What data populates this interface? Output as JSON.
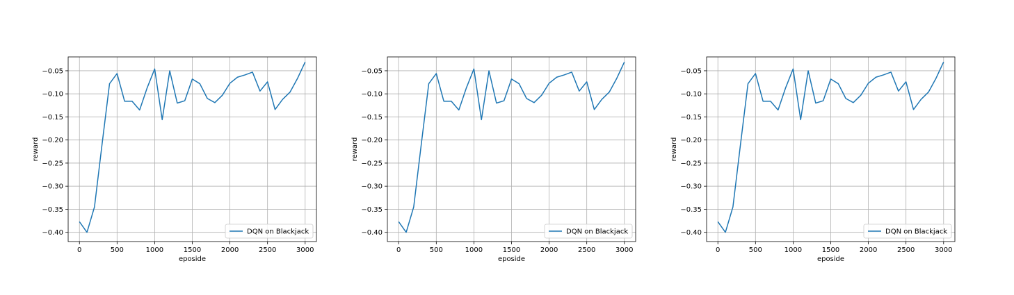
{
  "chart_data": [
    {
      "type": "line",
      "xlabel": "eposide",
      "ylabel": "reward",
      "xlim": [
        -150,
        3150
      ],
      "ylim": [
        -0.42,
        -0.02
      ],
      "xticks": [
        0,
        500,
        1000,
        1500,
        2000,
        2500,
        3000
      ],
      "yticks": [
        -0.4,
        -0.35,
        -0.3,
        -0.25,
        -0.2,
        -0.15,
        -0.1,
        -0.05
      ],
      "ytick_labels": [
        "−0.40",
        "−0.35",
        "−0.30",
        "−0.25",
        "−0.20",
        "−0.15",
        "−0.10",
        "−0.05"
      ],
      "grid": true,
      "legend_position": "lower-right",
      "series": [
        {
          "name": "DQN on Blackjack",
          "color": "#1f77b4",
          "x": [
            0,
            100,
            200,
            300,
            400,
            500,
            600,
            700,
            800,
            900,
            1000,
            1100,
            1200,
            1300,
            1400,
            1500,
            1600,
            1700,
            1800,
            1900,
            2000,
            2100,
            2200,
            2300,
            2400,
            2500,
            2600,
            2700,
            2800,
            2900,
            3000
          ],
          "y": [
            -0.377,
            -0.4,
            -0.345,
            -0.21,
            -0.078,
            -0.056,
            -0.116,
            -0.116,
            -0.135,
            -0.087,
            -0.046,
            -0.156,
            -0.05,
            -0.12,
            -0.115,
            -0.068,
            -0.078,
            -0.11,
            -0.119,
            -0.103,
            -0.077,
            -0.064,
            -0.059,
            -0.053,
            -0.094,
            -0.074,
            -0.134,
            -0.112,
            -0.096,
            -0.066,
            -0.031
          ]
        }
      ]
    },
    {
      "type": "line",
      "xlabel": "eposide",
      "ylabel": "reward",
      "xlim": [
        -150,
        3150
      ],
      "ylim": [
        -0.42,
        -0.02
      ],
      "xticks": [
        0,
        500,
        1000,
        1500,
        2000,
        2500,
        3000
      ],
      "yticks": [
        -0.4,
        -0.35,
        -0.3,
        -0.25,
        -0.2,
        -0.15,
        -0.1,
        -0.05
      ],
      "ytick_labels": [
        "−0.40",
        "−0.35",
        "−0.30",
        "−0.25",
        "−0.20",
        "−0.15",
        "−0.10",
        "−0.05"
      ],
      "grid": true,
      "legend_position": "lower-right",
      "series": [
        {
          "name": "DQN on Blackjack",
          "color": "#1f77b4",
          "x": [
            0,
            100,
            200,
            300,
            400,
            500,
            600,
            700,
            800,
            900,
            1000,
            1100,
            1200,
            1300,
            1400,
            1500,
            1600,
            1700,
            1800,
            1900,
            2000,
            2100,
            2200,
            2300,
            2400,
            2500,
            2600,
            2700,
            2800,
            2900,
            3000
          ],
          "y": [
            -0.377,
            -0.4,
            -0.345,
            -0.21,
            -0.078,
            -0.056,
            -0.116,
            -0.116,
            -0.135,
            -0.087,
            -0.046,
            -0.156,
            -0.05,
            -0.12,
            -0.115,
            -0.068,
            -0.078,
            -0.11,
            -0.119,
            -0.103,
            -0.077,
            -0.064,
            -0.059,
            -0.053,
            -0.094,
            -0.074,
            -0.134,
            -0.112,
            -0.096,
            -0.066,
            -0.031
          ]
        }
      ]
    },
    {
      "type": "line",
      "xlabel": "eposide",
      "ylabel": "reward",
      "xlim": [
        -150,
        3150
      ],
      "ylim": [
        -0.42,
        -0.02
      ],
      "xticks": [
        0,
        500,
        1000,
        1500,
        2000,
        2500,
        3000
      ],
      "yticks": [
        -0.4,
        -0.35,
        -0.3,
        -0.25,
        -0.2,
        -0.15,
        -0.1,
        -0.05
      ],
      "ytick_labels": [
        "−0.40",
        "−0.35",
        "−0.30",
        "−0.25",
        "−0.20",
        "−0.15",
        "−0.10",
        "−0.05"
      ],
      "grid": true,
      "legend_position": "lower-right",
      "series": [
        {
          "name": "DQN on Blackjack",
          "color": "#1f77b4",
          "x": [
            0,
            100,
            200,
            300,
            400,
            500,
            600,
            700,
            800,
            900,
            1000,
            1100,
            1200,
            1300,
            1400,
            1500,
            1600,
            1700,
            1800,
            1900,
            2000,
            2100,
            2200,
            2300,
            2400,
            2500,
            2600,
            2700,
            2800,
            2900,
            3000
          ],
          "y": [
            -0.377,
            -0.4,
            -0.345,
            -0.21,
            -0.078,
            -0.056,
            -0.116,
            -0.116,
            -0.135,
            -0.087,
            -0.046,
            -0.156,
            -0.05,
            -0.12,
            -0.115,
            -0.068,
            -0.078,
            -0.11,
            -0.119,
            -0.103,
            -0.077,
            -0.064,
            -0.059,
            -0.053,
            -0.094,
            -0.074,
            -0.134,
            -0.112,
            -0.096,
            -0.066,
            -0.031
          ]
        }
      ]
    }
  ]
}
